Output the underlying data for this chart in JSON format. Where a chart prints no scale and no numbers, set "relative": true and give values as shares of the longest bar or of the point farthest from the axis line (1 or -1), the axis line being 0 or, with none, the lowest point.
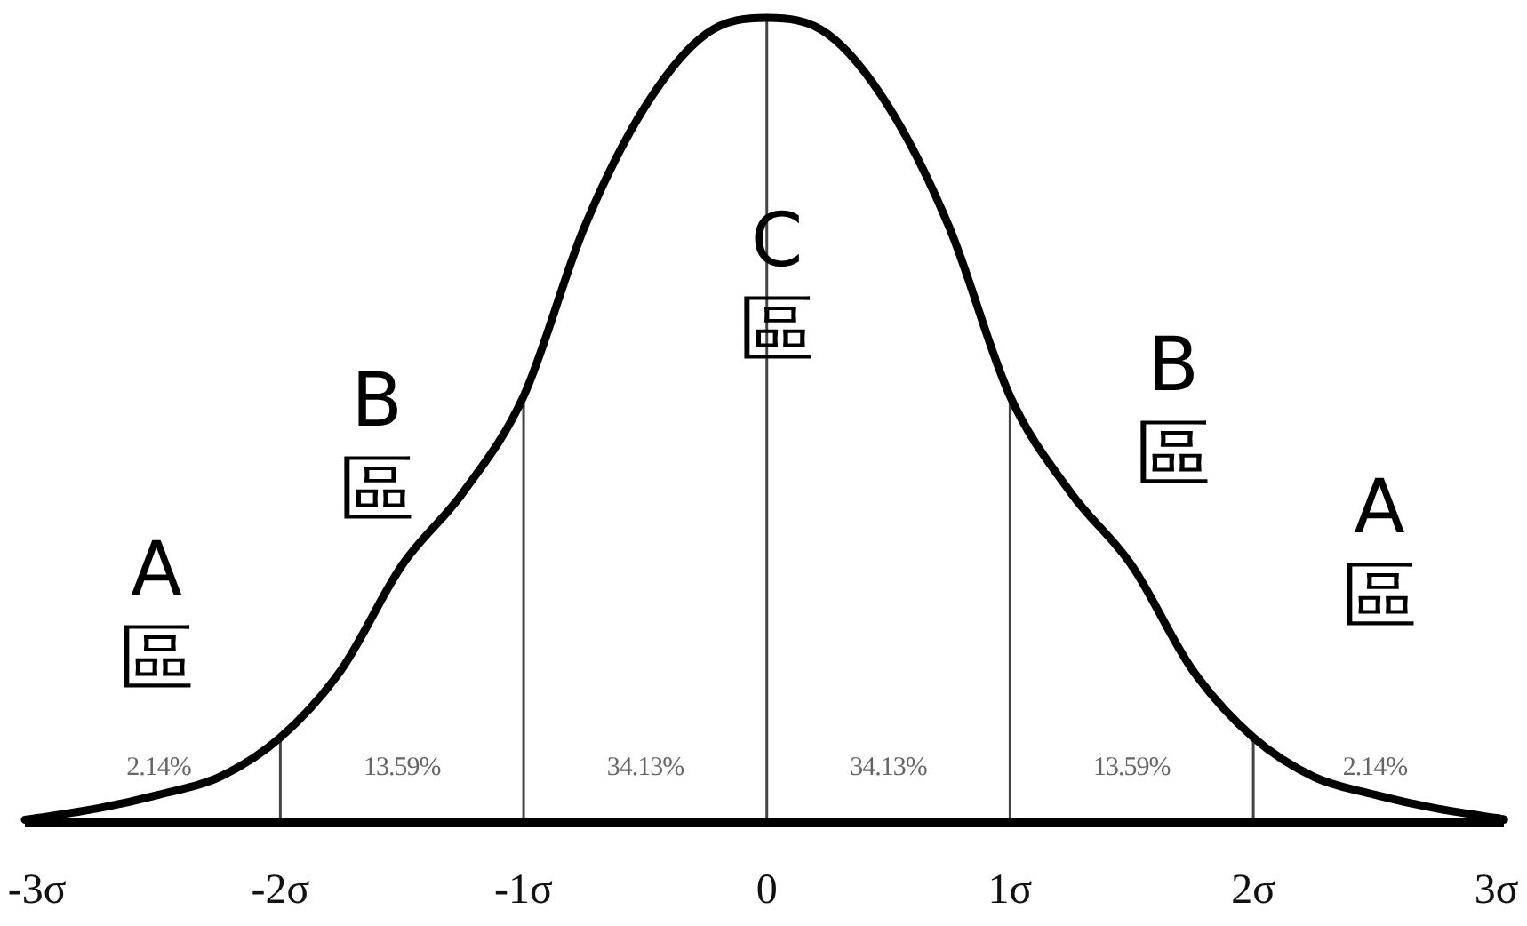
{
  "chart_data": {
    "type": "line",
    "relative": true,
    "x": [
      -3.05,
      -3,
      -2.75,
      -2.5,
      -2.25,
      -2,
      -1.75,
      -1.5,
      -1.25,
      -1,
      -0.75,
      -0.5,
      -0.25,
      0,
      0.25,
      0.5,
      0.75,
      1,
      1.25,
      1.5,
      1.75,
      2,
      2.25,
      2.5,
      2.75,
      3,
      3.03
    ],
    "series": [
      {
        "color": "#000000",
        "values": [
          0.004,
          0.006,
          0.018,
          0.035,
          0.057,
          0.106,
          0.19,
          0.32,
          0.41,
          0.53,
          0.74,
          0.89,
          0.98,
          1,
          0.98,
          0.89,
          0.74,
          0.53,
          0.41,
          0.32,
          0.19,
          0.106,
          0.057,
          0.035,
          0.018,
          0.006,
          0.004
        ]
      }
    ],
    "xlim": [
      -3.05,
      3.03
    ],
    "xticks": [
      {
        "value": -3,
        "label": "-3σ"
      },
      {
        "value": -2,
        "label": "-2σ"
      },
      {
        "value": -1,
        "label": "-1σ"
      },
      0,
      {
        "value": 1,
        "label": "1σ"
      },
      {
        "value": 2,
        "label": "2σ"
      },
      {
        "value": 3,
        "label": "3σ"
      }
    ],
    "tick_labels": "x",
    "ref_lines": [
      {
        "axis": "x",
        "value": -2
      },
      {
        "axis": "x",
        "value": -1
      },
      {
        "axis": "x",
        "value": 0
      },
      {
        "axis": "x",
        "value": 1
      },
      {
        "axis": "x",
        "value": 2
      }
    ],
    "annotations": [
      "2.14%",
      "13.59%",
      "34.13%",
      "34.13%",
      "13.59%",
      "2.14%",
      "A\n區",
      "B\n區",
      "C\n區",
      "B\n區",
      "A\n區"
    ]
  }
}
